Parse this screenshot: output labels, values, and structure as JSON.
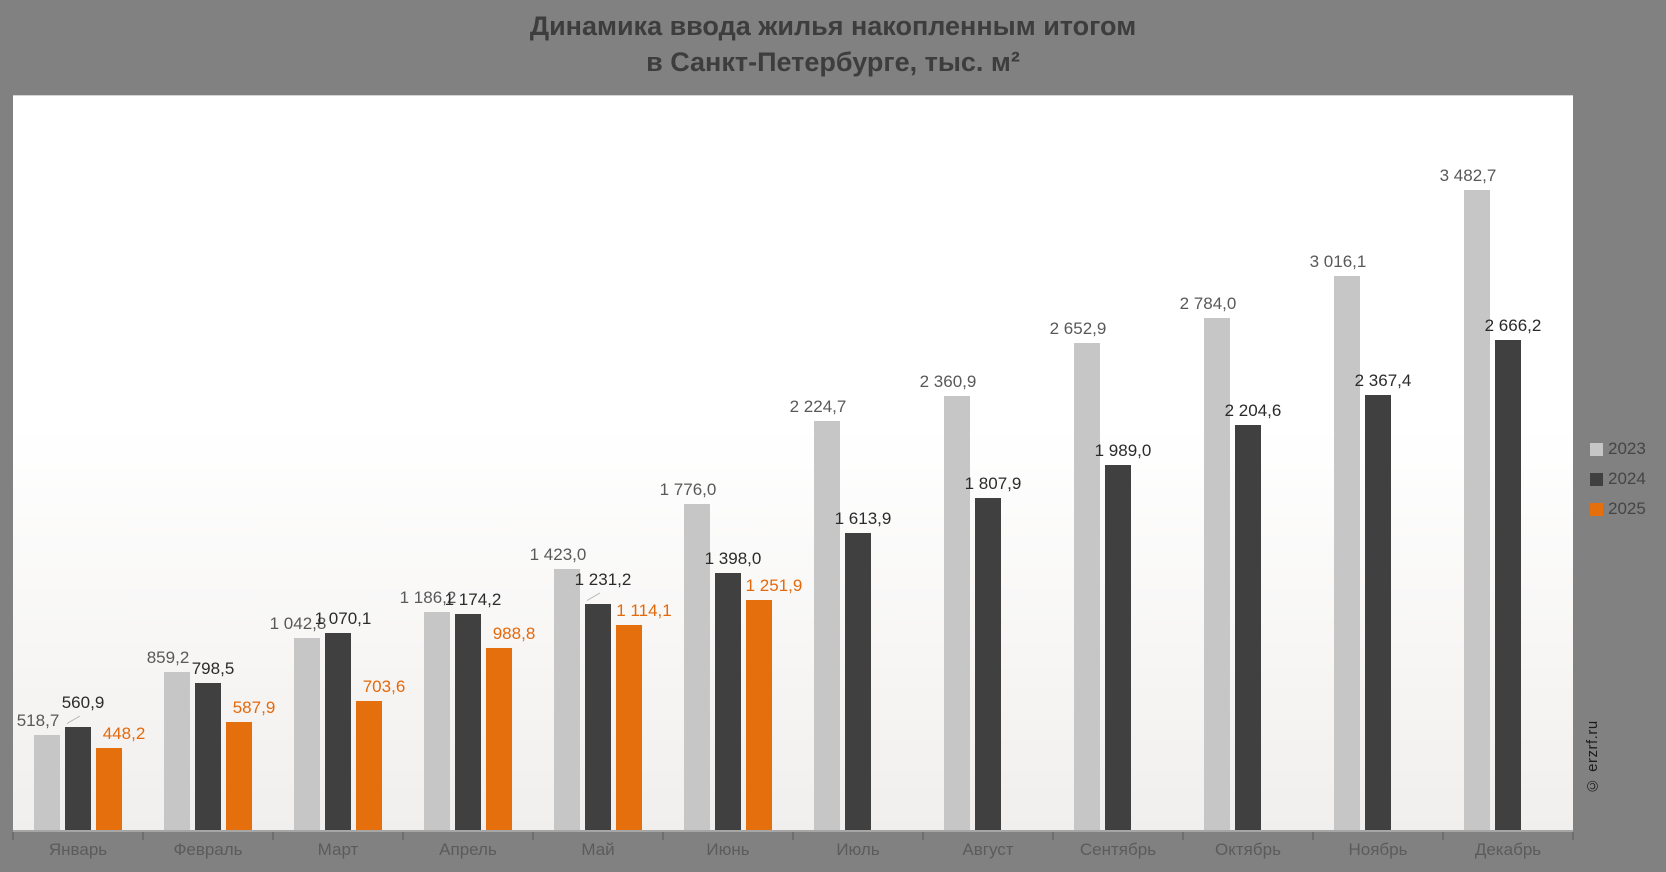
{
  "title": {
    "line1": "Динамика ввода жилья накопленным итогом",
    "line2": "в Санкт-Петербурге, тыс. м²"
  },
  "watermark": "© erzrf.ru",
  "legend": {
    "items": [
      {
        "label": "2023",
        "color": "#c6c6c6"
      },
      {
        "label": "2024",
        "color": "#404040"
      },
      {
        "label": "2025",
        "color": "#e56f0c"
      }
    ]
  },
  "chart_data": {
    "type": "bar",
    "title": "Динамика ввода жилья накопленным итогом в Санкт-Петербурге, тыс. м²",
    "categories": [
      "Январь",
      "Февраль",
      "Март",
      "Апрель",
      "Май",
      "Июнь",
      "Июль",
      "Август",
      "Сентябрь",
      "Октябрь",
      "Ноябрь",
      "Декабрь"
    ],
    "series": [
      {
        "name": "2023",
        "color": "#c6c6c6",
        "label_color": "#595959",
        "values": [
          518.7,
          859.2,
          1042.8,
          1186.2,
          1423.0,
          1776.0,
          2224.7,
          2360.9,
          2652.9,
          2784.0,
          3016.1,
          3482.7
        ],
        "labels": [
          "518,7",
          "859,2",
          "1 042,8",
          "1 186,2",
          "1 423,0",
          "1 776,0",
          "2 224,7",
          "2 360,9",
          "2 652,9",
          "2 784,0",
          "3 016,1",
          "3 482,7"
        ]
      },
      {
        "name": "2024",
        "color": "#404040",
        "label_color": "#2b2b2b",
        "values": [
          560.9,
          798.5,
          1070.1,
          1174.2,
          1231.2,
          1398.0,
          1613.9,
          1807.9,
          1989.0,
          2204.6,
          2367.4,
          2666.2
        ],
        "labels": [
          "560,9",
          "798,5",
          "1 070,1",
          "1 174,2",
          "1 231,2",
          "1 398,0",
          "1 613,9",
          "1 807,9",
          "1 989,0",
          "2 204,6",
          "2 367,4",
          "2 666,2"
        ]
      },
      {
        "name": "2025",
        "color": "#e56f0c",
        "label_color": "#e4690b",
        "values": [
          448.2,
          587.9,
          703.6,
          988.8,
          1114.1,
          1251.9,
          null,
          null,
          null,
          null,
          null,
          null
        ],
        "labels": [
          "448,2",
          "587,9",
          "703,6",
          "988,8",
          "1 114,1",
          "1 251,9",
          null,
          null,
          null,
          null,
          null,
          null
        ]
      }
    ],
    "ylabel": "тыс. м²",
    "xlabel": "",
    "ylim": [
      0,
      4000
    ],
    "grid": false,
    "legend_position": "right"
  }
}
